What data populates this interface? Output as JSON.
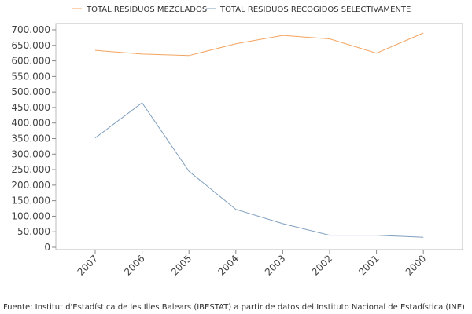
{
  "chart_data": {
    "type": "line",
    "categories": [
      "2007",
      "2006",
      "2005",
      "2004",
      "2003",
      "2002",
      "2001",
      "2000"
    ],
    "series": [
      {
        "name": "TOTAL RESIDUOS MEZCLADOS",
        "color": "#f4a460",
        "values": [
          634000,
          622000,
          617000,
          655000,
          682000,
          671000,
          625000,
          690000
        ]
      },
      {
        "name": "TOTAL RESIDUOS RECOGIDOS SELECTIVAMENTE",
        "color": "#7f9fbf",
        "values": [
          352000,
          465000,
          245000,
          122000,
          76000,
          39000,
          39000,
          32000
        ]
      }
    ],
    "yticks": [
      0,
      50000,
      100000,
      150000,
      200000,
      250000,
      300000,
      350000,
      400000,
      450000,
      500000,
      550000,
      600000,
      650000,
      700000
    ],
    "ytick_labels": [
      "0",
      "50.000",
      "100.000",
      "150.000",
      "200.000",
      "250.000",
      "300.000",
      "350.000",
      "400.000",
      "450.000",
      "500.000",
      "550.000",
      "600.000",
      "650.000",
      "700.000"
    ],
    "ylim": [
      0,
      700000
    ],
    "legend_position": "top",
    "grid": false,
    "title": "",
    "xlabel": "",
    "ylabel": ""
  },
  "source": "Fuente: Institut d'Estadística de les Illes Balears (IBESTAT) a partir de datos del Instituto Nacional de Estadística (INE)"
}
